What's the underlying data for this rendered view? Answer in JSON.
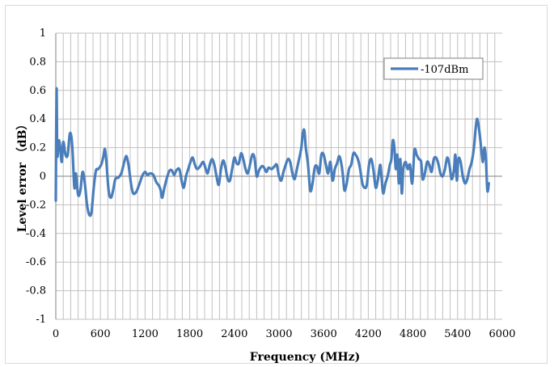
{
  "chart_data": {
    "type": "line",
    "title": "",
    "xlabel": "Frequency (MHz)",
    "ylabel": "Level error （dB）",
    "xlim": [
      0,
      6000
    ],
    "ylim": [
      -1,
      1
    ],
    "x_ticks": [
      0,
      600,
      1200,
      1800,
      2400,
      3000,
      3600,
      4200,
      4800,
      5400,
      6000
    ],
    "y_ticks": [
      1,
      0.8,
      0.6,
      0.4,
      0.2,
      0,
      -0.2,
      -0.4,
      -0.6,
      -0.8,
      -1
    ],
    "x_tick_labels": [
      "0",
      "600",
      "1200",
      "1800",
      "2400",
      "3000",
      "3600",
      "4200",
      "4800",
      "5400",
      "6000"
    ],
    "y_tick_labels": [
      "1",
      "0.8",
      "0.6",
      "0.4",
      "0.2",
      "0",
      "-0.2",
      "-0.4",
      "-0.6",
      "-0.8",
      "-1"
    ],
    "grid": "vertical lines every 100 MHz, horizontal lines every 0.2 dB",
    "legend_position": "top-right",
    "color": "#4a7ebb",
    "series": [
      {
        "name": "-107dBm",
        "points": [
          [
            0,
            -0.17
          ],
          [
            10,
            0.61
          ],
          [
            20,
            0.15
          ],
          [
            40,
            0.25
          ],
          [
            60,
            0.2
          ],
          [
            80,
            0.1
          ],
          [
            100,
            0.24
          ],
          [
            130,
            0.15
          ],
          [
            160,
            0.15
          ],
          [
            190,
            0.3
          ],
          [
            220,
            0.22
          ],
          [
            250,
            -0.08
          ],
          [
            270,
            0.02
          ],
          [
            300,
            -0.13
          ],
          [
            330,
            -0.1
          ],
          [
            360,
            0.03
          ],
          [
            390,
            -0.05
          ],
          [
            420,
            -0.2
          ],
          [
            450,
            -0.27
          ],
          [
            480,
            -0.25
          ],
          [
            510,
            -0.08
          ],
          [
            540,
            0.04
          ],
          [
            570,
            0.05
          ],
          [
            610,
            0.08
          ],
          [
            640,
            0.14
          ],
          [
            660,
            0.19
          ],
          [
            680,
            0.1
          ],
          [
            710,
            -0.1
          ],
          [
            740,
            -0.15
          ],
          [
            770,
            -0.1
          ],
          [
            800,
            -0.02
          ],
          [
            840,
            -0.01
          ],
          [
            880,
            0.02
          ],
          [
            920,
            0.1
          ],
          [
            950,
            0.14
          ],
          [
            980,
            0.07
          ],
          [
            1010,
            -0.05
          ],
          [
            1040,
            -0.12
          ],
          [
            1080,
            -0.11
          ],
          [
            1120,
            -0.06
          ],
          [
            1160,
            0.0
          ],
          [
            1200,
            0.03
          ],
          [
            1230,
            0.01
          ],
          [
            1270,
            0.02
          ],
          [
            1310,
            0.01
          ],
          [
            1350,
            -0.04
          ],
          [
            1390,
            -0.07
          ],
          [
            1410,
            -0.1
          ],
          [
            1430,
            -0.15
          ],
          [
            1460,
            -0.08
          ],
          [
            1500,
            0.0
          ],
          [
            1530,
            0.04
          ],
          [
            1560,
            0.04
          ],
          [
            1590,
            0.01
          ],
          [
            1620,
            0.04
          ],
          [
            1660,
            0.05
          ],
          [
            1690,
            -0.03
          ],
          [
            1720,
            -0.08
          ],
          [
            1750,
            0.0
          ],
          [
            1780,
            0.05
          ],
          [
            1810,
            0.1
          ],
          [
            1840,
            0.13
          ],
          [
            1870,
            0.08
          ],
          [
            1900,
            0.05
          ],
          [
            1940,
            0.07
          ],
          [
            1980,
            0.1
          ],
          [
            2010,
            0.06
          ],
          [
            2040,
            0.02
          ],
          [
            2070,
            0.08
          ],
          [
            2100,
            0.12
          ],
          [
            2130,
            0.08
          ],
          [
            2160,
            0.0
          ],
          [
            2190,
            -0.06
          ],
          [
            2220,
            0.05
          ],
          [
            2250,
            0.11
          ],
          [
            2280,
            0.06
          ],
          [
            2310,
            -0.02
          ],
          [
            2340,
            -0.03
          ],
          [
            2370,
            0.05
          ],
          [
            2400,
            0.13
          ],
          [
            2430,
            0.09
          ],
          [
            2460,
            0.09
          ],
          [
            2490,
            0.16
          ],
          [
            2520,
            0.12
          ],
          [
            2550,
            0.05
          ],
          [
            2580,
            0.02
          ],
          [
            2610,
            0.08
          ],
          [
            2640,
            0.15
          ],
          [
            2670,
            0.13
          ],
          [
            2700,
            0.0
          ],
          [
            2730,
            0.04
          ],
          [
            2770,
            0.07
          ],
          [
            2800,
            0.06
          ],
          [
            2830,
            0.03
          ],
          [
            2860,
            0.06
          ],
          [
            2900,
            0.05
          ],
          [
            2940,
            0.07
          ],
          [
            2970,
            0.08
          ],
          [
            3000,
            0.0
          ],
          [
            3030,
            -0.03
          ],
          [
            3060,
            0.03
          ],
          [
            3090,
            0.08
          ],
          [
            3120,
            0.12
          ],
          [
            3150,
            0.1
          ],
          [
            3180,
            0.02
          ],
          [
            3210,
            -0.02
          ],
          [
            3240,
            0.05
          ],
          [
            3270,
            0.12
          ],
          [
            3300,
            0.2
          ],
          [
            3320,
            0.3
          ],
          [
            3340,
            0.32
          ],
          [
            3360,
            0.2
          ],
          [
            3390,
            0.08
          ],
          [
            3420,
            -0.1
          ],
          [
            3450,
            -0.05
          ],
          [
            3480,
            0.06
          ],
          [
            3510,
            0.07
          ],
          [
            3540,
            0.02
          ],
          [
            3570,
            0.15
          ],
          [
            3600,
            0.15
          ],
          [
            3630,
            0.08
          ],
          [
            3660,
            0.02
          ],
          [
            3690,
            0.1
          ],
          [
            3720,
            -0.03
          ],
          [
            3750,
            0.05
          ],
          [
            3780,
            0.09
          ],
          [
            3810,
            0.14
          ],
          [
            3840,
            0.08
          ],
          [
            3860,
            0.0
          ],
          [
            3880,
            -0.1
          ],
          [
            3910,
            -0.05
          ],
          [
            3940,
            0.05
          ],
          [
            3970,
            0.08
          ],
          [
            4000,
            0.16
          ],
          [
            4030,
            0.15
          ],
          [
            4060,
            0.12
          ],
          [
            4090,
            0.05
          ],
          [
            4120,
            -0.05
          ],
          [
            4150,
            -0.08
          ],
          [
            4180,
            -0.06
          ],
          [
            4210,
            0.08
          ],
          [
            4240,
            0.12
          ],
          [
            4270,
            0.04
          ],
          [
            4300,
            -0.08
          ],
          [
            4330,
            -0.02
          ],
          [
            4360,
            0.08
          ],
          [
            4380,
            -0.02
          ],
          [
            4400,
            -0.12
          ],
          [
            4430,
            -0.05
          ],
          [
            4460,
            0.0
          ],
          [
            4490,
            0.08
          ],
          [
            4510,
            0.12
          ],
          [
            4530,
            0.25
          ],
          [
            4550,
            0.2
          ],
          [
            4570,
            0.05
          ],
          [
            4590,
            0.15
          ],
          [
            4610,
            -0.05
          ],
          [
            4630,
            0.12
          ],
          [
            4650,
            -0.12
          ],
          [
            4670,
            0.05
          ],
          [
            4700,
            0.1
          ],
          [
            4730,
            0.05
          ],
          [
            4760,
            0.08
          ],
          [
            4790,
            -0.05
          ],
          [
            4820,
            0.18
          ],
          [
            4850,
            0.15
          ],
          [
            4880,
            0.12
          ],
          [
            4910,
            0.1
          ],
          [
            4930,
            -0.02
          ],
          [
            4960,
            0.02
          ],
          [
            4990,
            0.1
          ],
          [
            5020,
            0.08
          ],
          [
            5050,
            0.03
          ],
          [
            5080,
            0.12
          ],
          [
            5110,
            0.13
          ],
          [
            5140,
            0.09
          ],
          [
            5170,
            0.02
          ],
          [
            5200,
            0.0
          ],
          [
            5230,
            0.05
          ],
          [
            5260,
            0.13
          ],
          [
            5290,
            0.08
          ],
          [
            5320,
            -0.02
          ],
          [
            5350,
            0.04
          ],
          [
            5370,
            0.15
          ],
          [
            5390,
            -0.03
          ],
          [
            5410,
            0.12
          ],
          [
            5440,
            0.1
          ],
          [
            5470,
            0.0
          ],
          [
            5500,
            -0.05
          ],
          [
            5530,
            -0.02
          ],
          [
            5560,
            0.05
          ],
          [
            5590,
            0.1
          ],
          [
            5620,
            0.2
          ],
          [
            5640,
            0.32
          ],
          [
            5660,
            0.4
          ],
          [
            5680,
            0.36
          ],
          [
            5700,
            0.28
          ],
          [
            5720,
            0.18
          ],
          [
            5740,
            0.1
          ],
          [
            5760,
            0.2
          ],
          [
            5780,
            0.12
          ],
          [
            5800,
            -0.1
          ],
          [
            5820,
            -0.05
          ]
        ]
      }
    ]
  }
}
